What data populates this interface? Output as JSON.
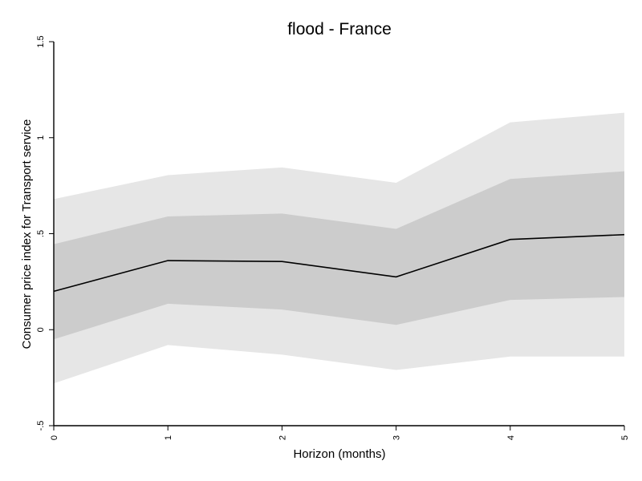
{
  "chart_data": {
    "type": "line",
    "title": "flood - France",
    "xlabel": "Horizon (months)",
    "ylabel": "Consumer price index for Transport service",
    "x": [
      0,
      1,
      2,
      3,
      4,
      5
    ],
    "xlim": [
      0,
      5
    ],
    "ylim": [
      -0.5,
      1.5
    ],
    "x_ticks": [
      {
        "value": 0,
        "label": "0"
      },
      {
        "value": 1,
        "label": "1"
      },
      {
        "value": 2,
        "label": "2"
      },
      {
        "value": 3,
        "label": "3"
      },
      {
        "value": 4,
        "label": "4"
      },
      {
        "value": 5,
        "label": "5"
      }
    ],
    "y_ticks": [
      {
        "value": -0.5,
        "label": "-.5"
      },
      {
        "value": 0,
        "label": "0"
      },
      {
        "value": 0.5,
        "label": ".5"
      },
      {
        "value": 1,
        "label": "1"
      },
      {
        "value": 1.5,
        "label": "1.5"
      }
    ],
    "series": [
      {
        "values": [
          0.2,
          0.36,
          0.355,
          0.275,
          0.47,
          0.495
        ]
      }
    ],
    "bands": [
      {
        "lower": [
          -0.28,
          -0.08,
          -0.13,
          -0.21,
          -0.14,
          -0.14
        ],
        "upper": [
          0.68,
          0.805,
          0.845,
          0.765,
          1.08,
          1.13
        ]
      },
      {
        "lower": [
          -0.05,
          0.135,
          0.105,
          0.025,
          0.155,
          0.17
        ],
        "upper": [
          0.445,
          0.59,
          0.605,
          0.525,
          0.785,
          0.825
        ]
      }
    ],
    "grid": false,
    "legend": "none"
  },
  "colors": {
    "outer_band": "#e6e6e6",
    "inner_band": "#cccccc",
    "line": "#000000",
    "axis": "#000000",
    "background": "#ffffff"
  }
}
